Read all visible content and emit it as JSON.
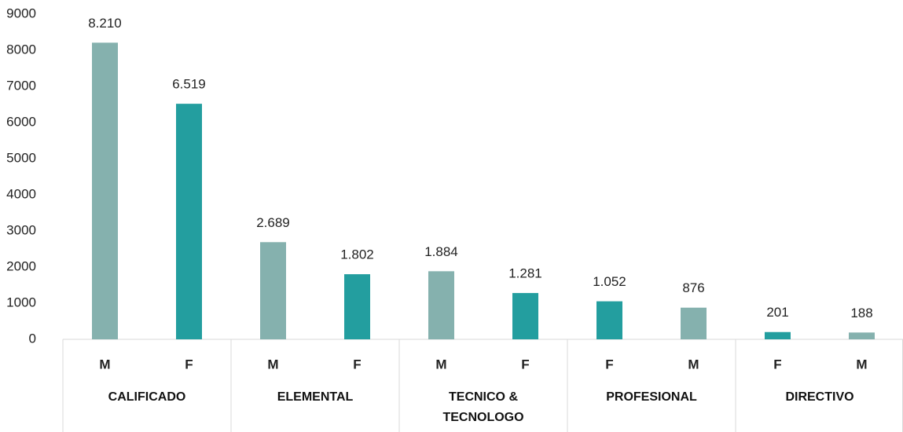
{
  "chart_data": {
    "type": "bar",
    "categories": [
      "M",
      "F",
      "M",
      "F",
      "M",
      "F",
      "F",
      "M",
      "F",
      "M"
    ],
    "groups": [
      "CALIFICADO",
      "ELEMENTAL",
      "TECNICO & TECNOLOGO",
      "PROFESIONAL",
      "DIRECTIVO"
    ],
    "values": [
      8210,
      6519,
      2689,
      1802,
      1884,
      1281,
      1052,
      876,
      201,
      188
    ],
    "value_labels": [
      "8.210",
      "6.519",
      "2.689",
      "1.802",
      "1.884",
      "1.281",
      "1.052",
      "876",
      "201",
      "188"
    ],
    "colors": [
      "#85b1ae",
      "#239e9f",
      "#85b1ae",
      "#239e9f",
      "#85b1ae",
      "#239e9f",
      "#239e9f",
      "#85b1ae",
      "#239e9f",
      "#85b1ae"
    ],
    "ylim": [
      0,
      9000
    ],
    "yticks": [
      0,
      1000,
      2000,
      3000,
      4000,
      5000,
      6000,
      7000,
      8000,
      9000
    ],
    "grid": false
  }
}
